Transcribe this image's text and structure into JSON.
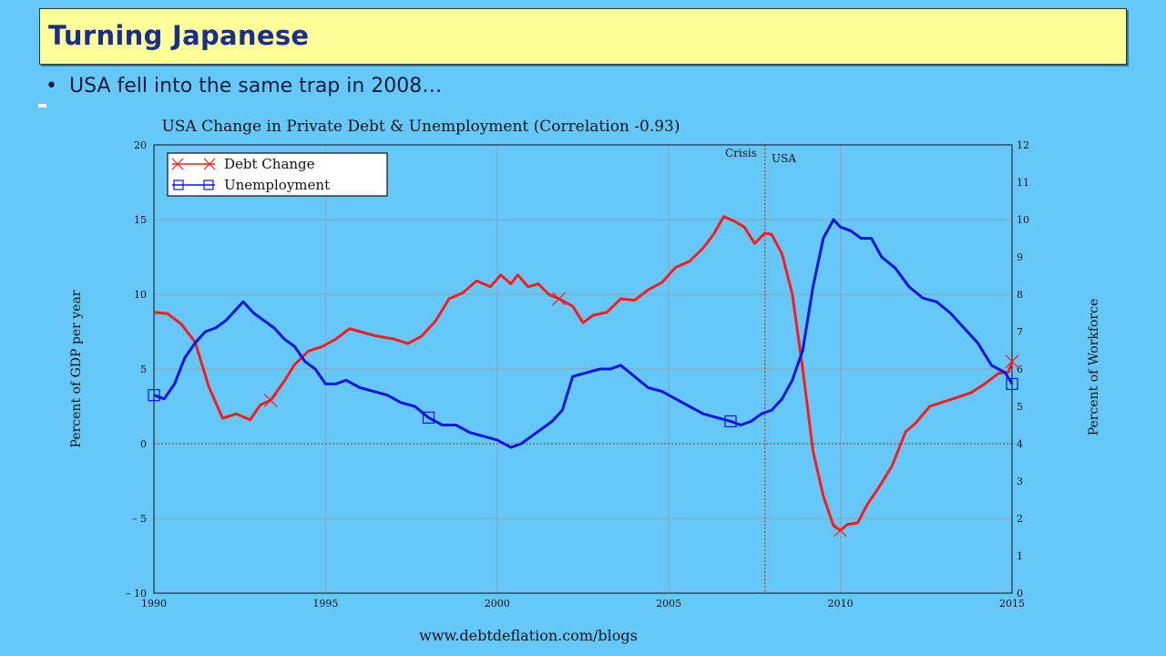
{
  "slide": {
    "title": "Turning Japanese",
    "bullet": "USA fell into the same trap in 2008…"
  },
  "chart_data": {
    "type": "line",
    "title": "USA Change in Private Debt & Unemployment (Correlation -0.93)",
    "ylabel": "Percent of GDP per year",
    "y2label": "Percent of Workforce",
    "xlim": [
      1990,
      2015
    ],
    "ylim": [
      -10,
      20
    ],
    "y2lim": [
      0,
      12
    ],
    "x_ticks": [
      "1990",
      "1995",
      "2000",
      "2005",
      "2010",
      "2015"
    ],
    "y_ticks": [
      "20",
      "15",
      "10",
      "5",
      "0",
      "– 5",
      "– 10"
    ],
    "y2_ticks": [
      "12",
      "11",
      "10",
      "9",
      "8",
      "7",
      "6",
      "5",
      "4",
      "3",
      "2",
      "1",
      "0"
    ],
    "grid": true,
    "legend_position": "top-left",
    "annotations": [
      {
        "text": "Crisis",
        "x": 2007.8
      },
      {
        "text": "USA"
      }
    ],
    "source": "www.debtdeflation.com/blogs",
    "series": [
      {
        "name": "Debt Change",
        "axis": "left",
        "color": "#ff1a1a",
        "x": [
          1990,
          1990.4,
          1990.8,
          1991.2,
          1991.6,
          1992.0,
          1992.4,
          1992.8,
          1993.1,
          1993.4,
          1993.8,
          1994.1,
          1994.5,
          1994.9,
          1995.3,
          1995.7,
          1996.0,
          1996.5,
          1997.0,
          1997.4,
          1997.8,
          1998.2,
          1998.6,
          1999.0,
          1999.4,
          1999.8,
          2000.1,
          2000.4,
          2000.6,
          2000.9,
          2001.2,
          2001.5,
          2001.8,
          2002.2,
          2002.5,
          2002.8,
          2003.2,
          2003.6,
          2004.0,
          2004.4,
          2004.8,
          2005.2,
          2005.6,
          2006.0,
          2006.3,
          2006.6,
          2006.9,
          2007.2,
          2007.5,
          2007.8,
          2008.0,
          2008.3,
          2008.6,
          2008.9,
          2009.2,
          2009.5,
          2009.8,
          2010.0,
          2010.2,
          2010.5,
          2010.8,
          2011.1,
          2011.5,
          2011.9,
          2012.2,
          2012.6,
          2013.0,
          2013.4,
          2013.8,
          2014.2,
          2014.6,
          2014.9,
          2015.0
        ],
        "values": [
          8.8,
          8.7,
          8.0,
          6.8,
          3.8,
          1.7,
          2.0,
          1.6,
          2.6,
          2.9,
          4.2,
          5.3,
          6.2,
          6.5,
          7.0,
          7.7,
          7.5,
          7.2,
          7.0,
          6.7,
          7.2,
          8.2,
          9.7,
          10.1,
          10.9,
          10.5,
          11.3,
          10.7,
          11.3,
          10.5,
          10.7,
          10.0,
          9.7,
          9.2,
          8.1,
          8.6,
          8.8,
          9.7,
          9.6,
          10.3,
          10.8,
          11.8,
          12.2,
          13.1,
          14.0,
          15.2,
          14.9,
          14.5,
          13.4,
          14.1,
          14.0,
          12.7,
          10.0,
          5.0,
          -0.5,
          -3.5,
          -5.5,
          -5.8,
          -5.4,
          -5.3,
          -4.0,
          -3.0,
          -1.5,
          0.8,
          1.4,
          2.5,
          2.8,
          3.1,
          3.4,
          4.0,
          4.7,
          4.8,
          5.5
        ]
      },
      {
        "name": "Unemployment",
        "axis": "right",
        "color": "#0a14e6",
        "x": [
          1990,
          1990.3,
          1990.6,
          1990.9,
          1991.2,
          1991.5,
          1991.8,
          1992.1,
          1992.4,
          1992.6,
          1992.9,
          1993.2,
          1993.5,
          1993.8,
          1994.1,
          1994.4,
          1994.7,
          1995.0,
          1995.3,
          1995.6,
          1996.0,
          1996.4,
          1996.8,
          1997.2,
          1997.6,
          1998.0,
          1998.4,
          1998.8,
          1999.2,
          1999.6,
          2000.0,
          2000.4,
          2000.7,
          2001.0,
          2001.3,
          2001.6,
          2001.9,
          2002.2,
          2002.6,
          2003.0,
          2003.3,
          2003.6,
          2004.0,
          2004.4,
          2004.8,
          2005.2,
          2005.6,
          2006.0,
          2006.4,
          2006.8,
          2007.1,
          2007.4,
          2007.7,
          2008.0,
          2008.3,
          2008.6,
          2008.9,
          2009.2,
          2009.5,
          2009.8,
          2010.0,
          2010.3,
          2010.6,
          2010.9,
          2011.2,
          2011.6,
          2012.0,
          2012.4,
          2012.8,
          2013.2,
          2013.6,
          2014.0,
          2014.4,
          2014.8,
          2015.0
        ],
        "values": [
          5.3,
          5.2,
          5.6,
          6.3,
          6.7,
          7.0,
          7.1,
          7.3,
          7.6,
          7.8,
          7.5,
          7.3,
          7.1,
          6.8,
          6.6,
          6.2,
          6.0,
          5.6,
          5.6,
          5.7,
          5.5,
          5.4,
          5.3,
          5.1,
          5.0,
          4.7,
          4.5,
          4.5,
          4.3,
          4.2,
          4.1,
          3.9,
          4.0,
          4.2,
          4.4,
          4.6,
          4.9,
          5.8,
          5.9,
          6.0,
          6.0,
          6.1,
          5.8,
          5.5,
          5.4,
          5.2,
          5.0,
          4.8,
          4.7,
          4.6,
          4.5,
          4.6,
          4.8,
          4.9,
          5.2,
          5.7,
          6.5,
          8.2,
          9.5,
          10.0,
          9.8,
          9.7,
          9.5,
          9.5,
          9.0,
          8.7,
          8.2,
          7.9,
          7.8,
          7.5,
          7.1,
          6.7,
          6.1,
          5.9,
          5.6
        ]
      }
    ]
  }
}
